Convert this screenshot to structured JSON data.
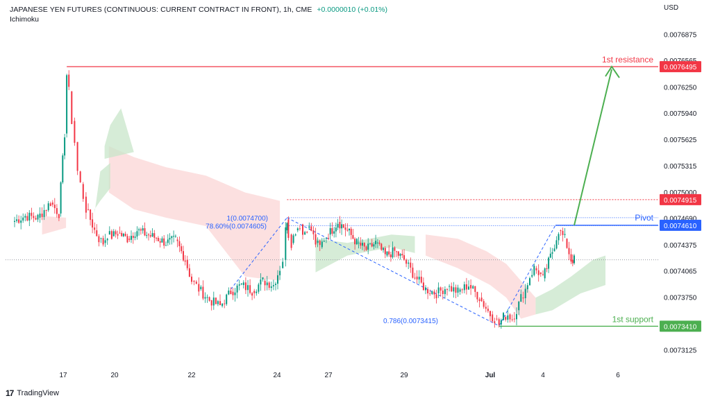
{
  "header": {
    "symbol": "JAPANESE YEN FUTURES (CONTINUOUS: CURRENT CONTRACT IN FRONT), 1h, CME",
    "change": "+0.0000010 (+0.01%)",
    "indicator": "Ichimoku"
  },
  "footer": {
    "brand": "TradingView"
  },
  "chart_data": {
    "type": "candlestick",
    "currency_label": "USD",
    "y_ticks": [
      "0.0076875",
      "0.0076565",
      "0.0076250",
      "0.0075940",
      "0.0075625",
      "0.0075315",
      "0.0075000",
      "0.0074690",
      "0.0074375",
      "0.0074065",
      "0.0073750",
      "0.0073125"
    ],
    "x_ticks": [
      "17",
      "20",
      "22",
      "24",
      "27",
      "29",
      "Jul",
      "4",
      "6"
    ],
    "levels": [
      {
        "name": "1st resistance",
        "value": "0.0076495",
        "color": "#f23645"
      },
      {
        "name": "",
        "value": "0.0074915",
        "color": "#f23645"
      },
      {
        "name": "Pivot",
        "value": "0.0074610",
        "color": "#2962ff"
      },
      {
        "name": "1st support",
        "value": "0.0073410",
        "color": "#4caf50"
      }
    ],
    "fib_labels": [
      "1(0.0074700)",
      "78.60%(0.0074605)",
      "0.786(0.0073415)"
    ],
    "colors": {
      "up": "#089981",
      "down": "#f23645",
      "cloud_bull": "#c8e6c9",
      "cloud_bear": "#fbd5d5",
      "resistance": "#f23645",
      "pivot": "#2962ff",
      "support": "#4caf50"
    },
    "close_path": [
      [
        "06-16 00:00",
        0.007465
      ],
      [
        "06-16 06:00",
        0.007472
      ],
      [
        "06-16 12:00",
        0.00747
      ],
      [
        "06-16 18:00",
        0.007488
      ],
      [
        "06-16 22:00",
        0.007475
      ],
      [
        "06-17 02:00",
        0.00757
      ],
      [
        "06-17 05:00",
        0.00764
      ],
      [
        "06-17 08:00",
        0.00762
      ],
      [
        "06-17 12:00",
        0.007585
      ],
      [
        "06-17 16:00",
        0.00756
      ],
      [
        "06-17 20:00",
        0.007525
      ],
      [
        "06-18 00:00",
        0.00751
      ],
      [
        "06-18 04:00",
        0.007495
      ],
      [
        "06-18 08:00",
        0.00748
      ],
      [
        "06-18 14:00",
        0.007468
      ],
      [
        "06-18 20:00",
        0.007455
      ],
      [
        "06-19 02:00",
        0.007445
      ],
      [
        "06-19 08:00",
        0.00744
      ],
      [
        "06-19 14:00",
        0.00745
      ],
      [
        "06-19 20:00",
        0.007448
      ],
      [
        "06-20 02:00",
        0.007452
      ],
      [
        "06-20 08:00",
        0.007445
      ],
      [
        "06-20 14:00",
        0.007455
      ],
      [
        "06-20 20:00",
        0.00745
      ],
      [
        "06-21 02:00",
        0.007446
      ],
      [
        "06-21 08:00",
        0.00744
      ],
      [
        "06-21 14:00",
        0.007444
      ],
      [
        "06-21 20:00",
        0.00742
      ],
      [
        "06-22 00:00",
        0.007395
      ],
      [
        "06-22 04:00",
        0.007385
      ],
      [
        "06-22 10:00",
        0.007372
      ],
      [
        "06-22 16:00",
        0.007365
      ],
      [
        "06-22 22:00",
        0.007382
      ],
      [
        "06-23 04:00",
        0.00739
      ],
      [
        "06-23 10:00",
        0.007383
      ],
      [
        "06-23 16:00",
        0.007395
      ],
      [
        "06-23 22:00",
        0.00739
      ],
      [
        "06-24 04:00",
        0.00741
      ],
      [
        "06-24 08:00",
        0.00742
      ],
      [
        "06-24 12:00",
        0.007455
      ],
      [
        "06-24 14:00",
        0.007468
      ],
      [
        "06-24 16:00",
        0.00745
      ],
      [
        "06-24 20:00",
        0.00744
      ],
      [
        "06-25 02:00",
        0.007455
      ],
      [
        "06-25 08:00",
        0.007462
      ],
      [
        "06-25 12:00",
        0.00745
      ],
      [
        "06-25 18:00",
        0.007458
      ],
      [
        "06-26 00:00",
        0.007455
      ],
      [
        "06-26 06:00",
        0.00744
      ],
      [
        "06-26 12:00",
        0.007435
      ],
      [
        "06-26 18:00",
        0.007445
      ],
      [
        "06-27 00:00",
        0.00745
      ],
      [
        "06-27 06:00",
        0.007465
      ],
      [
        "06-27 12:00",
        0.007455
      ],
      [
        "06-27 18:00",
        0.00744
      ],
      [
        "06-28 00:00",
        0.007432
      ],
      [
        "06-28 06:00",
        0.00744
      ],
      [
        "06-28 12:00",
        0.007425
      ],
      [
        "06-28 18:00",
        0.00743
      ],
      [
        "06-29 00:00",
        0.00742
      ],
      [
        "06-29 06:00",
        0.0074
      ],
      [
        "06-29 12:00",
        0.007385
      ],
      [
        "06-29 18:00",
        0.00738
      ],
      [
        "06-30 00:00",
        0.007388
      ],
      [
        "06-30 06:00",
        0.007382
      ],
      [
        "06-30 12:00",
        0.00739
      ],
      [
        "06-30 18:00",
        0.007375
      ],
      [
        "07-01 00:00",
        0.007355
      ],
      [
        "07-01 06:00",
        0.00735
      ],
      [
        "07-01 12:00",
        0.007343
      ],
      [
        "07-01 18:00",
        0.007352
      ],
      [
        "07-02 00:00",
        0.007355
      ],
      [
        "07-02 06:00",
        0.00735
      ],
      [
        "07-02 12:00",
        0.00736
      ],
      [
        "07-02 18:00",
        0.007375
      ],
      [
        "07-03 00:00",
        0.007385
      ],
      [
        "07-03 06:00",
        0.0074
      ],
      [
        "07-03 12:00",
        0.00741
      ],
      [
        "07-03 18:00",
        0.007405
      ],
      [
        "07-04 00:00",
        0.007398
      ],
      [
        "07-04 06:00",
        0.00743
      ],
      [
        "07-04 10:00",
        0.007455
      ],
      [
        "07-04 14:00",
        0.007445
      ],
      [
        "07-04 18:00",
        0.00742
      ],
      [
        "07-04 20:00",
        0.00742
      ]
    ],
    "cloud_bear": [
      [
        [
          "06-16 14:00",
          0.00745
        ],
        [
          "06-17 04:00",
          0.007458
        ],
        [
          "06-17 04:00",
          0.00747
        ],
        [
          "06-16 14:00",
          0.007472
        ]
      ],
      [
        [
          "06-19 16:00",
          0.007555
        ],
        [
          "06-20 12:00",
          0.007542
        ],
        [
          "06-21 08:00",
          0.00753
        ],
        [
          "06-22 08:00",
          0.00752
        ],
        [
          "06-23 06:00",
          0.0075
        ],
        [
          "06-24 04:00",
          0.00749
        ],
        [
          "06-24 04:00",
          0.007395
        ],
        [
          "06-23 06:00",
          0.0074
        ],
        [
          "06-22 08:00",
          0.00746
        ],
        [
          "06-21 08:00",
          0.00747
        ],
        [
          "06-20 12:00",
          0.00748
        ],
        [
          "06-19 16:00",
          0.0075
        ]
      ],
      [
        [
          "06-29 12:00",
          0.00745
        ],
        [
          "06-30 06:00",
          0.007445
        ],
        [
          "06-30 22:00",
          0.00743
        ],
        [
          "07-01 22:00",
          0.007415
        ],
        [
          "07-02 18:00",
          0.007395
        ],
        [
          "07-03 14:00",
          0.007375
        ],
        [
          "07-03 14:00",
          0.007355
        ],
        [
          "07-02 18:00",
          0.00735
        ],
        [
          "07-01 22:00",
          0.007375
        ],
        [
          "07-01 00:00",
          0.00739
        ],
        [
          "06-30 06:00",
          0.00741
        ],
        [
          "06-29 12:00",
          0.007425
        ]
      ]
    ],
    "cloud_bull": [
      [
        [
          "06-18 20:00",
          0.007475
        ],
        [
          "06-19 04:00",
          0.007525
        ],
        [
          "06-19 18:00",
          0.007535
        ],
        [
          "06-19 18:00",
          0.007505
        ],
        [
          "06-19 04:00",
          0.00749
        ],
        [
          "06-18 20:00",
          0.00748
        ]
      ],
      [
        [
          "06-19 10:00",
          0.007555
        ],
        [
          "06-19 18:00",
          0.00758
        ],
        [
          "06-20 04:00",
          0.0076
        ],
        [
          "06-20 12:00",
          0.007548
        ],
        [
          "06-19 10:00",
          0.00754
        ]
      ],
      [
        [
          "06-26 06:00",
          0.007445
        ],
        [
          "06-27 12:00",
          0.00744
        ],
        [
          "06-28 16:00",
          0.00745
        ],
        [
          "06-29 06:00",
          0.007448
        ],
        [
          "06-29 06:00",
          0.007428
        ],
        [
          "06-28 16:00",
          0.007435
        ],
        [
          "06-27 12:00",
          0.007425
        ],
        [
          "06-26 06:00",
          0.007405
        ]
      ],
      [
        [
          "07-03 14:00",
          0.007375
        ],
        [
          "07-04 06:00",
          0.007385
        ],
        [
          "07-04 18:00",
          0.0074
        ],
        [
          "07-05 08:00",
          0.00742
        ],
        [
          "07-05 16:00",
          0.007425
        ],
        [
          "07-05 16:00",
          0.00739
        ],
        [
          "07-05 00:00",
          0.00738
        ],
        [
          "07-04 06:00",
          0.00736
        ],
        [
          "07-03 14:00",
          0.007355
        ]
      ]
    ],
    "fib_down_from": [
      "06-24 14:00",
      0.00747
    ],
    "fib_down_to": [
      "07-01 12:00",
      0.0073415
    ],
    "fib_up_from": [
      "07-01 12:00",
      0.0073415
    ],
    "fib_up_to": [
      "07-04 08:00",
      0.007461
    ],
    "arrow_from": [
      "07-04 20:00",
      0.007461
    ],
    "arrow_to": [
      "07-05 20:00",
      0.0076495
    ],
    "last_price": 0.00742
  }
}
